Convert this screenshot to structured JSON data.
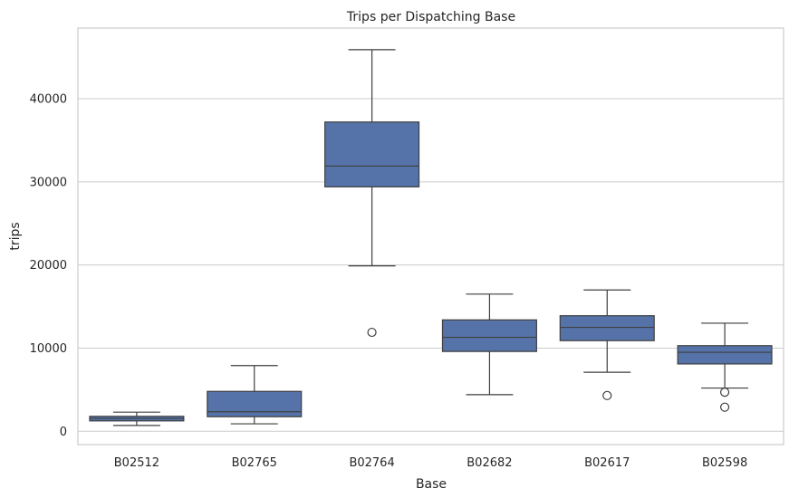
{
  "chart_data": {
    "type": "box",
    "title": "Trips per Dispatching Base",
    "xlabel": "Base",
    "ylabel": "trips",
    "ylim": [
      -1600,
      48500
    ],
    "yticks": [
      0,
      10000,
      20000,
      30000,
      40000
    ],
    "ytick_labels": [
      "0",
      "10000",
      "20000",
      "30000",
      "40000"
    ],
    "grid": "horizontal",
    "box_color": "#5573a8",
    "line_color": "#3f3f3f",
    "categories": [
      "B02512",
      "B02765",
      "B02764",
      "B02682",
      "B02617",
      "B02598"
    ],
    "boxes": [
      {
        "category": "B02512",
        "whisker_low": 700,
        "q1": 1250,
        "median": 1550,
        "q3": 1800,
        "whisker_high": 2300,
        "outliers": []
      },
      {
        "category": "B02765",
        "whisker_low": 900,
        "q1": 1750,
        "median": 2350,
        "q3": 4800,
        "whisker_high": 7900,
        "outliers": []
      },
      {
        "category": "B02764",
        "whisker_low": 19900,
        "q1": 29400,
        "median": 31900,
        "q3": 37200,
        "whisker_high": 45900,
        "outliers": [
          11900
        ]
      },
      {
        "category": "B02682",
        "whisker_low": 4400,
        "q1": 9600,
        "median": 11300,
        "q3": 13400,
        "whisker_high": 16500,
        "outliers": []
      },
      {
        "category": "B02617",
        "whisker_low": 7100,
        "q1": 10900,
        "median": 12500,
        "q3": 13900,
        "whisker_high": 17000,
        "outliers": [
          4300
        ]
      },
      {
        "category": "B02598",
        "whisker_low": 5200,
        "q1": 8100,
        "median": 9500,
        "q3": 10300,
        "whisker_high": 13000,
        "outliers": [
          4700,
          2900
        ]
      }
    ]
  }
}
